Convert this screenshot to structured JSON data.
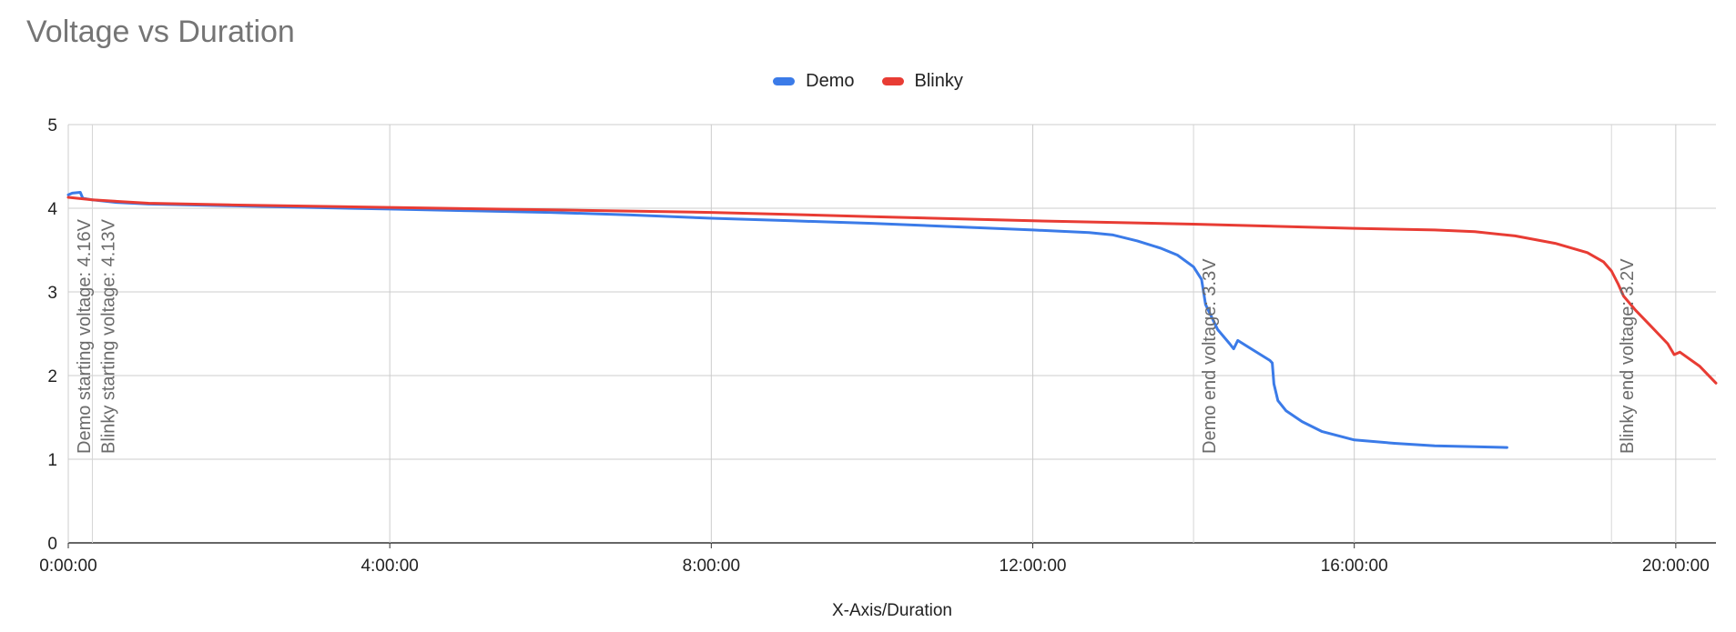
{
  "chart_data": {
    "type": "line",
    "title": "Voltage vs Duration",
    "xlabel": "X-Axis/Duration",
    "ylabel": "",
    "xlim_hours": [
      0,
      20.5
    ],
    "ylim": [
      0,
      5
    ],
    "grid": true,
    "legend_position": "top",
    "x_ticks": [
      {
        "label": "0:00:00",
        "hours": 0
      },
      {
        "label": "4:00:00",
        "hours": 4
      },
      {
        "label": "8:00:00",
        "hours": 8
      },
      {
        "label": "12:00:00",
        "hours": 12
      },
      {
        "label": "16:00:00",
        "hours": 16
      },
      {
        "label": "20:00:00",
        "hours": 20
      }
    ],
    "y_ticks": [
      0,
      1,
      2,
      3,
      4,
      5
    ],
    "series": [
      {
        "name": "Demo",
        "color": "#3b7be8",
        "points": [
          [
            0.0,
            4.16
          ],
          [
            0.05,
            4.18
          ],
          [
            0.15,
            4.19
          ],
          [
            0.18,
            4.12
          ],
          [
            0.3,
            4.1
          ],
          [
            0.6,
            4.07
          ],
          [
            1.0,
            4.05
          ],
          [
            2.0,
            4.03
          ],
          [
            3.0,
            4.01
          ],
          [
            4.0,
            3.99
          ],
          [
            5.0,
            3.97
          ],
          [
            6.0,
            3.95
          ],
          [
            7.0,
            3.92
          ],
          [
            8.0,
            3.88
          ],
          [
            9.0,
            3.85
          ],
          [
            10.0,
            3.82
          ],
          [
            11.0,
            3.78
          ],
          [
            12.0,
            3.74
          ],
          [
            12.7,
            3.71
          ],
          [
            13.0,
            3.68
          ],
          [
            13.3,
            3.61
          ],
          [
            13.6,
            3.52
          ],
          [
            13.8,
            3.44
          ],
          [
            14.0,
            3.3
          ],
          [
            14.1,
            3.15
          ],
          [
            14.15,
            2.85
          ],
          [
            14.3,
            2.55
          ],
          [
            14.45,
            2.38
          ],
          [
            14.5,
            2.32
          ],
          [
            14.55,
            2.42
          ],
          [
            14.75,
            2.3
          ],
          [
            14.95,
            2.18
          ],
          [
            14.98,
            2.15
          ],
          [
            15.0,
            1.9
          ],
          [
            15.05,
            1.7
          ],
          [
            15.15,
            1.58
          ],
          [
            15.35,
            1.45
          ],
          [
            15.6,
            1.33
          ],
          [
            16.0,
            1.23
          ],
          [
            16.5,
            1.19
          ],
          [
            17.0,
            1.16
          ],
          [
            17.5,
            1.15
          ],
          [
            17.9,
            1.14
          ]
        ]
      },
      {
        "name": "Blinky",
        "color": "#e83c34",
        "points": [
          [
            0.0,
            4.13
          ],
          [
            0.3,
            4.1
          ],
          [
            1.0,
            4.06
          ],
          [
            2.0,
            4.04
          ],
          [
            4.0,
            4.01
          ],
          [
            6.0,
            3.98
          ],
          [
            8.0,
            3.95
          ],
          [
            10.0,
            3.9
          ],
          [
            12.0,
            3.85
          ],
          [
            14.0,
            3.81
          ],
          [
            16.0,
            3.76
          ],
          [
            17.0,
            3.74
          ],
          [
            17.5,
            3.72
          ],
          [
            18.0,
            3.67
          ],
          [
            18.5,
            3.58
          ],
          [
            18.9,
            3.47
          ],
          [
            19.1,
            3.36
          ],
          [
            19.2,
            3.25
          ],
          [
            19.28,
            3.1
          ],
          [
            19.35,
            2.95
          ],
          [
            19.5,
            2.78
          ],
          [
            19.7,
            2.58
          ],
          [
            19.9,
            2.38
          ],
          [
            19.98,
            2.25
          ],
          [
            20.05,
            2.28
          ],
          [
            20.3,
            2.11
          ],
          [
            20.5,
            1.91
          ]
        ]
      }
    ],
    "annotations": [
      {
        "text": "Demo starting voltage: 4.16V",
        "hours": 0.0
      },
      {
        "text": "Blinky starting voltage: 4.13V",
        "hours": 0.3
      },
      {
        "text": "Demo end voltage: 3.3V",
        "hours": 14.0
      },
      {
        "text": "Blinky end voltage: 3.2V",
        "hours": 19.2
      }
    ]
  }
}
